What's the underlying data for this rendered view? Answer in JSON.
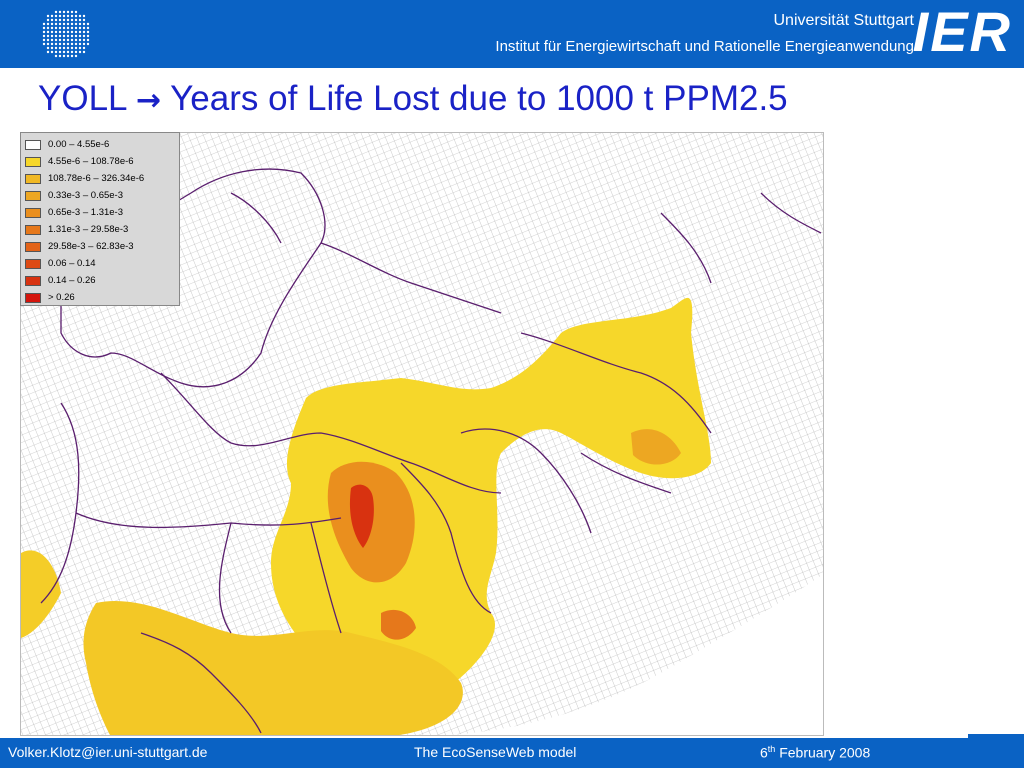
{
  "header": {
    "university": "Universität Stuttgart",
    "institute": "Institut für Energiewirtschaft und Rationelle Energieanwendung",
    "logo_text": "IER"
  },
  "slide": {
    "title_prefix": "YOLL",
    "title_arrow": "→",
    "title_suffix": "Years of Life Lost due to 1000 t PPM2.5"
  },
  "legend": {
    "items": [
      {
        "label": "0.00 –  4.55e-6",
        "color": "#ffffff"
      },
      {
        "label": "4.55e-6 –  108.78e-6",
        "color": "#f6d72a"
      },
      {
        "label": "108.78e-6 – 326.34e-6",
        "color": "#f0b824"
      },
      {
        "label": "0.33e-3 – 0.65e-3",
        "color": "#eda722"
      },
      {
        "label": "0.65e-3 – 1.31e-3",
        "color": "#ea8f1e"
      },
      {
        "label": "1.31e-3 – 29.58e-3",
        "color": "#e6781b"
      },
      {
        "label": "29.58e-3 – 62.83e-3",
        "color": "#e36318"
      },
      {
        "label": "0.06 – 0.14",
        "color": "#dd4a14"
      },
      {
        "label": "0.14 – 0.26",
        "color": "#d83210"
      },
      {
        "label": "> 0.26",
        "color": "#d4140c"
      }
    ]
  },
  "footer": {
    "email": "Volker.Klotz@ier.uni-stuttgart.de",
    "model": "The EcoSenseWeb model",
    "date_day": "6",
    "date_suffix": "th",
    "date_rest": " February 2008"
  }
}
